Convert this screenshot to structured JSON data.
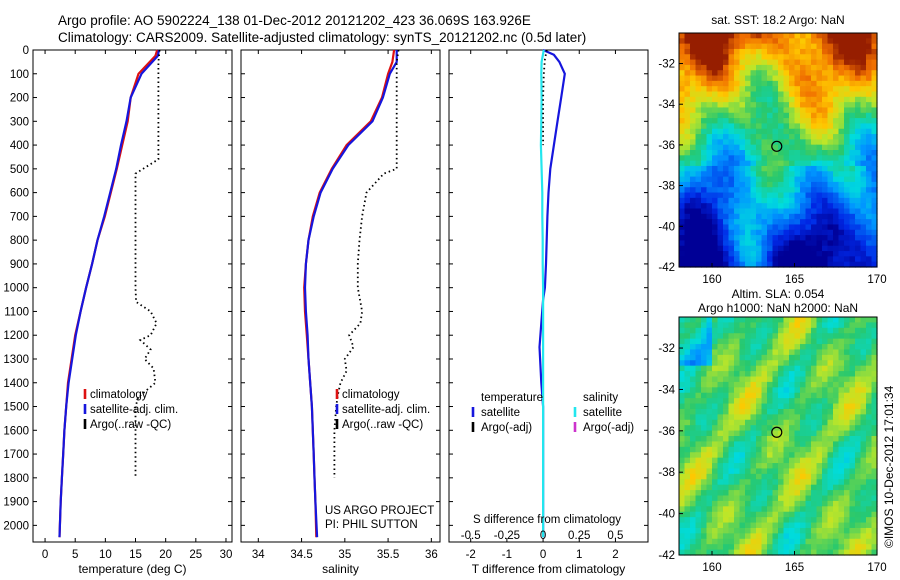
{
  "header": {
    "title_line1": "Argo profile: AO 5902224_138 01-Dec-2012 20121202_423 36.069S 163.926E",
    "title_line2": "Climatology: CARS2009. Satellite-adjusted climatology: synTS_20121202.nc (0.5d later)"
  },
  "colors": {
    "climatology": "#dd1111",
    "satellite": "#1616dd",
    "argo": "#000000",
    "satellite_s": "#22e6ee",
    "argo_adj_s": "#cc33cc"
  },
  "chart_data": [
    {
      "id": "temperature",
      "type": "line",
      "xlabel": "temperature (deg C)",
      "ylabel": "",
      "xlim": [
        -2,
        31
      ],
      "ylim": [
        2070,
        0
      ],
      "xticks": [
        0,
        5,
        10,
        15,
        20,
        25,
        30
      ],
      "xticklabels": [
        "0",
        "5",
        "10",
        "15",
        "20",
        "25",
        "30"
      ],
      "yticks": [
        0,
        100,
        200,
        300,
        400,
        500,
        600,
        700,
        800,
        900,
        1000,
        1100,
        1200,
        1300,
        1400,
        1500,
        1600,
        1700,
        1800,
        1900,
        2000
      ],
      "yticklabels": [
        "0",
        "100",
        "200",
        "300",
        "400",
        "500",
        "600",
        "700",
        "800",
        "900",
        "1000",
        "1100",
        "1200",
        "1300",
        "1400",
        "1500",
        "1600",
        "1700",
        "1800",
        "1900",
        "2000"
      ],
      "legend": [
        "climatology",
        "satellite-adj. clim.",
        "Argo(..raw -QC)"
      ],
      "series": [
        {
          "name": "climatology",
          "style": "solid",
          "color": "#dd1111",
          "x": [
            18.6,
            18.3,
            15.5,
            14.2,
            13.7,
            12.8,
            11.9,
            10.9,
            9.9,
            8.7,
            7.8,
            6.8,
            5.9,
            5.0,
            4.4,
            3.8,
            3.5,
            3.2,
            3.0,
            2.8,
            2.6,
            2.4
          ],
          "y": [
            0,
            25,
            100,
            200,
            300,
            400,
            500,
            600,
            700,
            800,
            900,
            1000,
            1100,
            1200,
            1300,
            1400,
            1500,
            1600,
            1700,
            1800,
            1900,
            2050
          ]
        },
        {
          "name": "satellite-adj. clim.",
          "style": "solid",
          "color": "#1616dd",
          "x": [
            18.9,
            18.7,
            16.0,
            14.2,
            13.5,
            12.6,
            11.8,
            10.8,
            9.8,
            8.7,
            7.8,
            6.8,
            5.9,
            5.1,
            4.5,
            3.9,
            3.5,
            3.2,
            3.0,
            2.8,
            2.6,
            2.4
          ],
          "y": [
            0,
            25,
            100,
            200,
            300,
            400,
            500,
            600,
            700,
            800,
            900,
            1000,
            1100,
            1200,
            1300,
            1400,
            1500,
            1600,
            1700,
            1800,
            1900,
            2050
          ]
        },
        {
          "name": "Argo(..raw -QC)",
          "style": "dotted",
          "color": "#000000",
          "x": [
            19.0,
            18.8,
            18.8,
            18.8,
            18.8,
            17.5,
            15.0,
            15.0,
            15.0,
            15.0,
            15.0,
            15.1,
            17.5,
            18.5,
            17.5,
            15.8,
            17.5,
            16.5,
            18.0,
            18.3,
            15.5,
            15.0,
            15.0,
            15.0,
            15.0
          ],
          "y": [
            0,
            50,
            150,
            300,
            460,
            480,
            520,
            600,
            700,
            800,
            1000,
            1060,
            1100,
            1150,
            1200,
            1220,
            1260,
            1300,
            1340,
            1400,
            1460,
            1500,
            1600,
            1700,
            1800
          ]
        }
      ],
      "annotations": []
    },
    {
      "id": "salinity",
      "type": "line",
      "xlabel": "salinity",
      "ylabel": "",
      "xlim": [
        33.8,
        36.1
      ],
      "ylim": [
        2070,
        0
      ],
      "xticks": [
        34,
        34.5,
        35,
        35.5,
        36
      ],
      "xticklabels": [
        "34",
        "34.5",
        "35",
        "35.5",
        "36"
      ],
      "yticks": [],
      "yticklabels": [],
      "legend": [
        "climatology",
        "satellite-adj. clim.",
        "Argo(..raw -QC)"
      ],
      "series": [
        {
          "name": "climatology",
          "style": "solid",
          "color": "#dd1111",
          "x": [
            35.57,
            35.55,
            35.5,
            35.43,
            35.3,
            35.02,
            34.85,
            34.71,
            34.63,
            34.58,
            34.55,
            34.53,
            34.54,
            34.56,
            34.58,
            34.6,
            34.62,
            34.63,
            34.64,
            34.65,
            34.66,
            34.67
          ],
          "y": [
            0,
            50,
            100,
            200,
            300,
            400,
            500,
            600,
            700,
            800,
            900,
            1000,
            1100,
            1200,
            1300,
            1400,
            1500,
            1600,
            1700,
            1800,
            1900,
            2050
          ]
        },
        {
          "name": "satellite-adj. clim.",
          "style": "solid",
          "color": "#1616dd",
          "x": [
            35.6,
            35.6,
            35.52,
            35.44,
            35.32,
            35.04,
            34.86,
            34.72,
            34.64,
            34.58,
            34.55,
            34.54,
            34.55,
            34.57,
            34.58,
            34.6,
            34.62,
            34.63,
            34.64,
            34.65,
            34.66,
            34.68
          ],
          "y": [
            0,
            50,
            100,
            200,
            300,
            400,
            500,
            600,
            700,
            800,
            900,
            1000,
            1100,
            1200,
            1300,
            1400,
            1500,
            1600,
            1700,
            1800,
            1900,
            2050
          ]
        },
        {
          "name": "Argo(..raw -QC)",
          "style": "dotted",
          "color": "#000000",
          "x": [
            35.62,
            35.6,
            35.6,
            35.6,
            35.6,
            35.45,
            35.25,
            35.2,
            35.17,
            35.15,
            35.15,
            35.2,
            35.18,
            35.05,
            35.1,
            35.0,
            35.02,
            34.95,
            34.92,
            34.9,
            34.88,
            34.88
          ],
          "y": [
            0,
            50,
            200,
            400,
            500,
            520,
            600,
            700,
            800,
            900,
            1000,
            1100,
            1150,
            1200,
            1250,
            1300,
            1350,
            1400,
            1450,
            1500,
            1600,
            1800
          ]
        }
      ],
      "annotations": [
        "US ARGO PROJECT",
        "PI: PHIL SUTTON"
      ]
    },
    {
      "id": "difference",
      "type": "line",
      "xlabel": "T difference from climatology",
      "top_label": "S difference from climatology",
      "xlim": [
        -2.6,
        2.9
      ],
      "ylim": [
        2070,
        0
      ],
      "xticks": [
        -2,
        -1,
        0,
        1,
        2
      ],
      "xticklabels": [
        "-2",
        "-1",
        "0",
        "1",
        "2"
      ],
      "s_ticks": [
        -0.5,
        -0.25,
        0,
        0.25,
        0.5
      ],
      "s_ticklabels": [
        "-0.5",
        "-0.25",
        "0",
        "0.25",
        "0.5"
      ],
      "yticks": [],
      "yticklabels": [],
      "legend_temperature": [
        "temperature",
        "satellite",
        "Argo(-adj)"
      ],
      "legend_salinity": [
        "salinity",
        "satellite",
        "Argo(-adj)"
      ],
      "series": [
        {
          "name": "temperature satellite",
          "style": "solid",
          "color": "#1616dd",
          "x": [
            0.0,
            0.3,
            0.45,
            0.6,
            0.5,
            0.4,
            0.3,
            0.2,
            0.15,
            0.12,
            0.1,
            0.08,
            0.05,
            0.0,
            -0.05,
            -0.1,
            -0.05,
            0.0,
            0.0,
            0.0,
            0.0,
            0.0,
            0.0,
            0.0
          ],
          "y": [
            0,
            20,
            50,
            100,
            200,
            300,
            400,
            500,
            600,
            700,
            800,
            900,
            1000,
            1050,
            1150,
            1250,
            1400,
            1500,
            1600,
            1700,
            1800,
            1900,
            2000,
            2050
          ]
        },
        {
          "name": "salinity satellite",
          "style": "solid",
          "color": "#22e6ee",
          "x": [
            0.02,
            -0.04,
            -0.05,
            -0.04,
            -0.05,
            -0.06,
            -0.04,
            -0.02,
            -0.02,
            -0.01,
            -0.01,
            0.0,
            0.0,
            0.0,
            0.0,
            0.0,
            0.0,
            0.0,
            0.0,
            0.0,
            0.0
          ],
          "y": [
            0,
            50,
            100,
            200,
            300,
            400,
            500,
            600,
            700,
            800,
            900,
            1000,
            1100,
            1200,
            1300,
            1400,
            1500,
            1600,
            1700,
            1800,
            2050
          ]
        },
        {
          "name": "temperature Argo(-adj)",
          "style": "dotted",
          "color": "#000000",
          "x": [
            0.1,
            0.05,
            0.02,
            0.0,
            0.0,
            0.0
          ],
          "y": [
            0,
            40,
            100,
            200,
            300,
            400
          ]
        }
      ],
      "annotations": []
    }
  ],
  "maps": [
    {
      "id": "sst-map",
      "type": "heatmap",
      "title": "sat. SST: 18.2 Argo: NaN",
      "xlim": [
        158,
        170
      ],
      "ylim": [
        -42,
        -30.5
      ],
      "xticks": [
        160,
        165,
        170
      ],
      "xticklabels": [
        "160",
        "165",
        "170"
      ],
      "yticks": [
        -32,
        -34,
        -36,
        -38,
        -40,
        -42
      ],
      "yticklabels": [
        "-32",
        "-34",
        "-36",
        "-38",
        "-40",
        "-42"
      ],
      "marker": [
        163.926,
        -36.069
      ]
    },
    {
      "id": "sla-map",
      "type": "heatmap",
      "title_line1": "Altim. SLA: 0.054",
      "title_line2": "Argo h1000: NaN h2000: NaN",
      "xlim": [
        158,
        170
      ],
      "ylim": [
        -42,
        -30.5
      ],
      "xticks": [
        160,
        165,
        170
      ],
      "xticklabels": [
        "160",
        "165",
        "170"
      ],
      "yticks": [
        -32,
        -34,
        -36,
        -38,
        -40,
        -42
      ],
      "yticklabels": [
        "-32",
        "-34",
        "-36",
        "-38",
        "-40",
        "-42"
      ],
      "marker": [
        163.926,
        -36.069
      ]
    }
  ],
  "footer": {
    "stamp": "©IMOS 10-Dec-2012 17:01:34"
  }
}
